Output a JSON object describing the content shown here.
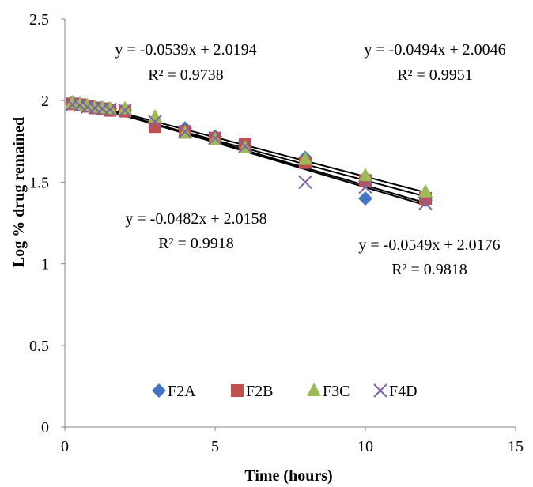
{
  "chart_data": {
    "type": "scatter",
    "title": "",
    "xlabel": "Time (hours)",
    "ylabel": "Log % drug remained",
    "xlim": [
      0,
      15
    ],
    "ylim": [
      0,
      2.5
    ],
    "x_ticks": [
      "0",
      "5",
      "10",
      "15"
    ],
    "y_ticks": [
      "0",
      "0.5",
      "1",
      "1.5",
      "2",
      "2.5"
    ],
    "grid": false,
    "legend_position": "bottom-center",
    "series": [
      {
        "name": "F2A",
        "marker": "diamond",
        "color": "#4472C4",
        "x": [
          0.25,
          0.5,
          0.75,
          1,
          1.25,
          1.5,
          2,
          3,
          4,
          5,
          6,
          8,
          10,
          12
        ],
        "y": [
          1.99,
          1.98,
          1.97,
          1.96,
          1.955,
          1.95,
          1.94,
          1.86,
          1.83,
          1.78,
          1.72,
          1.65,
          1.4,
          1.39
        ],
        "trendline": {
          "slope": -0.0539,
          "intercept": 2.0194,
          "equation": "y = -0.0539x + 2.0194",
          "r2": "R² = 0.9738"
        }
      },
      {
        "name": "F2B",
        "marker": "square",
        "color": "#C0504D",
        "x": [
          0.25,
          0.5,
          0.75,
          1,
          1.25,
          1.5,
          2,
          3,
          4,
          5,
          6,
          8,
          10,
          12
        ],
        "y": [
          1.98,
          1.975,
          1.965,
          1.955,
          1.95,
          1.94,
          1.935,
          1.84,
          1.81,
          1.77,
          1.73,
          1.62,
          1.51,
          1.4
        ],
        "trendline": {
          "slope": -0.0494,
          "intercept": 2.0046,
          "equation": "y = -0.0494x + 2.0046",
          "r2": "R² = 0.9951"
        }
      },
      {
        "name": "F3C",
        "marker": "triangle",
        "color": "#9BBB59",
        "x": [
          0.25,
          0.5,
          0.75,
          1,
          1.25,
          1.5,
          2,
          3,
          4,
          5,
          6,
          8,
          10,
          12
        ],
        "y": [
          1.985,
          1.975,
          1.97,
          1.96,
          1.955,
          1.95,
          1.95,
          1.9,
          1.8,
          1.76,
          1.71,
          1.64,
          1.54,
          1.44
        ],
        "trendline": {
          "slope": -0.0482,
          "intercept": 2.0158,
          "equation": "y = -0.0482x + 2.0158",
          "r2": "R² = 0.9918"
        }
      },
      {
        "name": "F4D",
        "marker": "x",
        "color": "#8064A2",
        "x": [
          0.25,
          0.5,
          0.75,
          1,
          1.25,
          1.5,
          2,
          3,
          4,
          5,
          6,
          8,
          10,
          12
        ],
        "y": [
          1.975,
          1.97,
          1.96,
          1.955,
          1.95,
          1.945,
          1.94,
          1.87,
          1.81,
          1.77,
          1.72,
          1.5,
          1.47,
          1.37
        ],
        "trendline": {
          "slope": -0.0549,
          "intercept": 2.0176,
          "equation": "y = -0.0549x + 2.0176",
          "r2": "R² = 0.9818"
        }
      }
    ]
  }
}
